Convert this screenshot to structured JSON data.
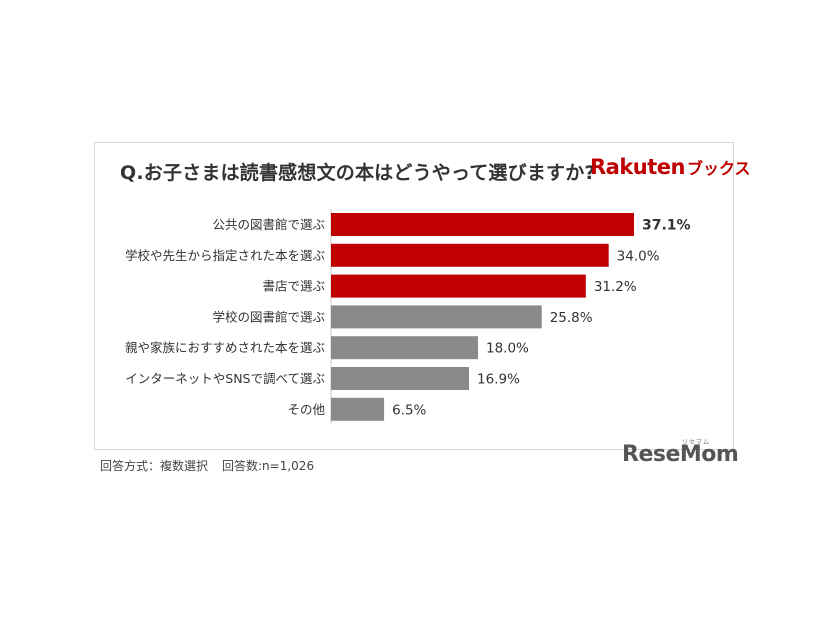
{
  "title": "Q.お子さまは読書感想文の本はどうやって選びますか?",
  "brand": {
    "name": "Rakuten",
    "suffix": "ブックス"
  },
  "footnote": {
    "method": "回答方式：複数選択",
    "count": "回答数:n=1,026"
  },
  "watermark": {
    "text": "ReseMom",
    "ruby": "リセマム"
  },
  "colors": {
    "highlight": "#c00000",
    "other": "#8a8a8a",
    "axis": "#c8c8c8"
  },
  "chart_data": {
    "type": "bar",
    "orientation": "horizontal",
    "unit": "%",
    "categories": [
      "公共の図書館で選ぶ",
      "学校や先生から指定された本を選ぶ",
      "書店で選ぶ",
      "学校の図書館で選ぶ",
      "親や家族におすすめされた本を選ぶ",
      "インターネットやSNSで調べて選ぶ",
      "その他"
    ],
    "values": [
      37.1,
      34.0,
      31.2,
      25.8,
      18.0,
      16.9,
      6.5
    ],
    "labels": [
      "37.1%",
      "34.0%",
      "31.2%",
      "25.8%",
      "18.0%",
      "16.9%",
      "6.5%"
    ],
    "highlighted": [
      true,
      true,
      true,
      false,
      false,
      false,
      false
    ],
    "xlim": [
      0,
      37.1
    ]
  }
}
